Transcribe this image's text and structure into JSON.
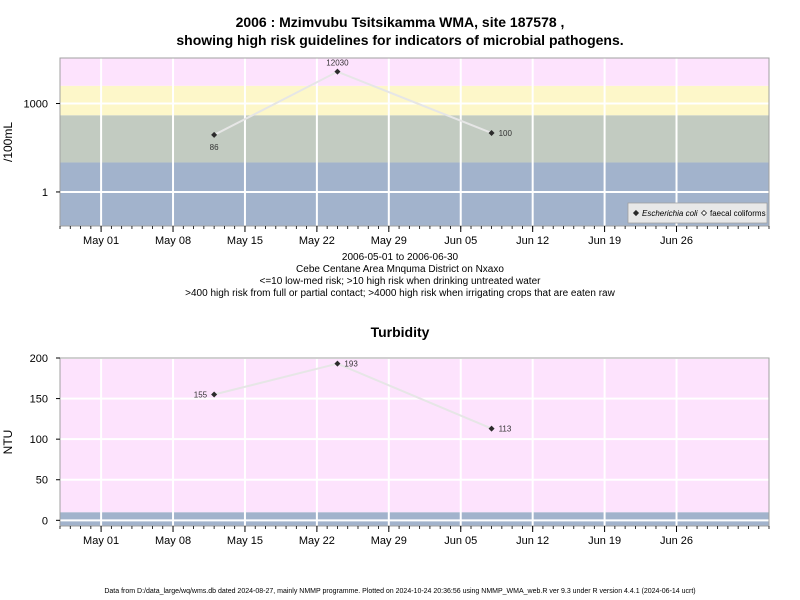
{
  "chart1": {
    "title_line1": "2006 : Mzimvubu Tsitsikamma WMA, site 187578 ,",
    "title_line2": "showing high risk guidelines for indicators of microbial pathogens.",
    "ylabel": "/100mL",
    "subtitle_lines": [
      "2006-05-01 to 2006-06-30",
      "Cebe Centane Area Mnquma District on Nxaxo",
      "<=10 low-med risk; >10 high risk when drinking untreated water",
      ">400 high risk from full or partial contact; >4000 high risk when irrigating crops that are eaten raw"
    ],
    "legend": [
      {
        "label": "Escherichia coli",
        "marker": "filled-diamond",
        "italic": true
      },
      {
        "label": "faecal coliforms",
        "marker": "open-diamond",
        "italic": false
      }
    ]
  },
  "chart2": {
    "title": "Turbidity",
    "ylabel": "NTU"
  },
  "footer": "Data from D:/data_large/wq/wms.db dated 2024-08-27, mainly NMMP programme. Plotted on 2024-10-24 20:36:56 using NMMP_WMA_web.R ver 9.3 under R version 4.4.1 (2024-06-14 ucrt)",
  "chart_data": [
    {
      "type": "line",
      "title": "2006 : Mzimvubu Tsitsikamma WMA, site 187578 , showing high risk guidelines for indicators of microbial pathogens.",
      "ylabel": "/100mL",
      "yscale": "log",
      "yticks": [
        1,
        1000
      ],
      "xlim": [
        "2006-04-27",
        "2006-07-05"
      ],
      "ylim": [
        0.07,
        35000
      ],
      "xticks": [
        "May 01",
        "May 08",
        "May 15",
        "May 22",
        "May 29",
        "Jun 05",
        "Jun 12",
        "Jun 19",
        "Jun 26"
      ],
      "xtick_dates": [
        "2006-05-01",
        "2006-05-08",
        "2006-05-15",
        "2006-05-22",
        "2006-05-29",
        "2006-06-05",
        "2006-06-12",
        "2006-06-19",
        "2006-06-26"
      ],
      "risk_bands": [
        {
          "from": 0.07,
          "to": 10,
          "color": "#a2b3cc"
        },
        {
          "from": 10,
          "to": 400,
          "color": "#c2cbc1"
        },
        {
          "from": 400,
          "to": 4000,
          "color": "#fdf7c9"
        },
        {
          "from": 4000,
          "to": 35000,
          "color": "#fde3fd"
        }
      ],
      "series": [
        {
          "name": "Escherichia coli",
          "x": [
            "2006-05-12",
            "2006-05-24",
            "2006-06-08"
          ],
          "y": [
            86,
            12030,
            100
          ],
          "labels": [
            "86",
            "12030",
            "100"
          ],
          "label_pos": [
            "below",
            "above",
            "right"
          ]
        }
      ],
      "legend_position": "bottom-right",
      "grid": true
    },
    {
      "type": "line",
      "title": "Turbidity",
      "ylabel": "NTU",
      "xlim": [
        "2006-04-27",
        "2006-07-05"
      ],
      "ylim": [
        -7,
        200
      ],
      "yticks": [
        0,
        50,
        100,
        150,
        200
      ],
      "xticks": [
        "May 01",
        "May 08",
        "May 15",
        "May 22",
        "May 29",
        "Jun 05",
        "Jun 12",
        "Jun 19",
        "Jun 26"
      ],
      "xtick_dates": [
        "2006-05-01",
        "2006-05-08",
        "2006-05-15",
        "2006-05-22",
        "2006-05-29",
        "2006-06-05",
        "2006-06-12",
        "2006-06-19",
        "2006-06-26"
      ],
      "risk_bands": [
        {
          "from": -7,
          "to": 10,
          "color": "#a2b3cc"
        },
        {
          "from": 10,
          "to": 200,
          "color": "#fde3fd"
        }
      ],
      "series": [
        {
          "name": "Turbidity",
          "x": [
            "2006-05-12",
            "2006-05-24",
            "2006-06-08"
          ],
          "y": [
            155,
            193,
            113
          ],
          "labels": [
            "155",
            "193",
            "113"
          ],
          "label_pos": [
            "left",
            "right",
            "right"
          ]
        }
      ],
      "grid": true
    }
  ]
}
